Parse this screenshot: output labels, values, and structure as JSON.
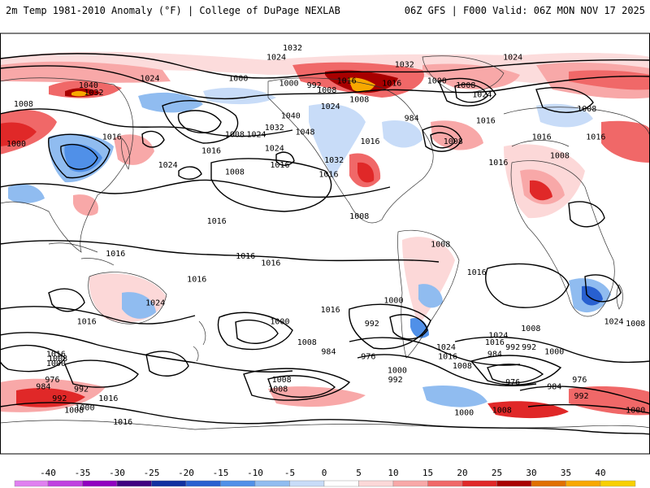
{
  "header": {
    "left_title": "2m Temp 1981-2010 Anomaly (°F) | College of DuPage NEXLAB",
    "right_title": "06Z GFS | F000 Valid: 06Z MON NOV 17 2025"
  },
  "legend": {
    "ticks": [
      "-40",
      "-35",
      "-30",
      "-25",
      "-20",
      "-15",
      "-10",
      "-5",
      "0",
      "5",
      "10",
      "15",
      "20",
      "25",
      "30",
      "35",
      "40"
    ],
    "colors": [
      "#e080f0",
      "#c040e0",
      "#9000c0",
      "#400080",
      "#1030a0",
      "#2860d0",
      "#5090e8",
      "#90bcf0",
      "#c8dcf8",
      "#ffffff",
      "#fcd8d8",
      "#f8a8a8",
      "#f06868",
      "#e02828",
      "#a80000",
      "#e07000",
      "#f8a800",
      "#f8d000"
    ]
  },
  "isobars": {
    "labels": [
      {
        "text": "1032",
        "lon": -168,
        "lat": 84
      },
      {
        "text": "1024",
        "lon": -177,
        "lat": 80
      },
      {
        "text": "1032",
        "lon": -106,
        "lat": 77
      },
      {
        "text": "1024",
        "lon": -46,
        "lat": 80
      },
      {
        "text": "1000",
        "lon": -170,
        "lat": 69
      },
      {
        "text": "992",
        "lon": -156,
        "lat": 68
      },
      {
        "text": "1008",
        "lon": -149,
        "lat": 66
      },
      {
        "text": "1016",
        "lon": -138,
        "lat": 70
      },
      {
        "text": "1016",
        "lon": -113,
        "lat": 69
      },
      {
        "text": "1000",
        "lon": -88,
        "lat": 70
      },
      {
        "text": "1008",
        "lon": -72,
        "lat": 68
      },
      {
        "text": "1008",
        "lon": -131,
        "lat": 62
      },
      {
        "text": "1024",
        "lon": -147,
        "lat": 59
      },
      {
        "text": "1040",
        "lon": -169,
        "lat": 55
      },
      {
        "text": "984",
        "lon": -102,
        "lat": 54
      },
      {
        "text": "1016",
        "lon": -61,
        "lat": 53
      },
      {
        "text": "1032",
        "lon": -178,
        "lat": 50
      },
      {
        "text": "1048",
        "lon": -161,
        "lat": 48
      },
      {
        "text": "1016",
        "lon": -125,
        "lat": 44
      },
      {
        "text": "1008",
        "lon": -79,
        "lat": 44
      },
      {
        "text": "1024",
        "lon": -178,
        "lat": 41
      },
      {
        "text": "1032",
        "lon": -145,
        "lat": 36
      },
      {
        "text": "1016",
        "lon": -175,
        "lat": 34
      },
      {
        "text": "1016",
        "lon": -148,
        "lat": 30
      },
      {
        "text": "1008",
        "lon": -131,
        "lat": 12
      },
      {
        "text": "1008",
        "lon": -86,
        "lat": 0
      },
      {
        "text": "1016",
        "lon": -66,
        "lat": -12
      },
      {
        "text": "1016",
        "lon": -147,
        "lat": -28
      },
      {
        "text": "1000",
        "lon": -112,
        "lat": -24
      },
      {
        "text": "1000",
        "lon": -175,
        "lat": -33
      },
      {
        "text": "992",
        "lon": -124,
        "lat": -34
      },
      {
        "text": "1008",
        "lon": -160,
        "lat": -42
      },
      {
        "text": "984",
        "lon": -148,
        "lat": -46
      },
      {
        "text": "976",
        "lon": -126,
        "lat": -48
      },
      {
        "text": "1000",
        "lon": -110,
        "lat": -54
      },
      {
        "text": "992",
        "lon": -111,
        "lat": -58
      },
      {
        "text": "1024",
        "lon": -54,
        "lat": -39
      },
      {
        "text": "1016",
        "lon": -56,
        "lat": -42
      },
      {
        "text": "1024",
        "lon": -83,
        "lat": -44
      },
      {
        "text": "1016",
        "lon": -82,
        "lat": -48
      },
      {
        "text": "1008",
        "lon": -74,
        "lat": -52
      },
      {
        "text": "992",
        "lon": -46,
        "lat": -44
      },
      {
        "text": "984",
        "lon": -56,
        "lat": -47
      },
      {
        "text": "1000",
        "lon": -23,
        "lat": -46
      },
      {
        "text": "976",
        "lon": -46,
        "lat": -59
      },
      {
        "text": "984",
        "lon": -23,
        "lat": -61
      },
      {
        "text": "976",
        "lon": -9,
        "lat": -58
      },
      {
        "text": "992",
        "lon": -8,
        "lat": -65
      },
      {
        "text": "1008",
        "lon": -52,
        "lat": -71
      },
      {
        "text": "1008",
        "lon": -174,
        "lat": -58
      },
      {
        "text": "1008",
        "lon": -176,
        "lat": -62
      },
      {
        "text": "1000",
        "lon": -73,
        "lat": -72
      },
      {
        "text": "1008",
        "lon": -36,
        "lat": -36
      },
      {
        "text": "992",
        "lon": -37,
        "lat": -44
      },
      {
        "text": "1016",
        "lon": 61,
        "lat": -47
      },
      {
        "text": "1008",
        "lon": 62,
        "lat": -49
      },
      {
        "text": "1000",
        "lon": 61,
        "lat": -51
      },
      {
        "text": "976",
        "lon": 59,
        "lat": -58
      },
      {
        "text": "984",
        "lon": 54,
        "lat": -61
      },
      {
        "text": "992",
        "lon": 75,
        "lat": -62
      },
      {
        "text": "992",
        "lon": 63,
        "lat": -66
      },
      {
        "text": "1016",
        "lon": 90,
        "lat": -66
      },
      {
        "text": "1008",
        "lon": 71,
        "lat": -71
      },
      {
        "text": "1000",
        "lon": 77,
        "lat": -70
      },
      {
        "text": "1016",
        "lon": 98,
        "lat": -76
      },
      {
        "text": "1000",
        "lon": 22,
        "lat": -71
      },
      {
        "text": "1024",
        "lon": 10,
        "lat": -33
      },
      {
        "text": "1008",
        "lon": 22,
        "lat": -34
      },
      {
        "text": "1016",
        "lon": 78,
        "lat": -33
      },
      {
        "text": "1024",
        "lon": 116,
        "lat": -25
      },
      {
        "text": "1016",
        "lon": 139,
        "lat": -15
      },
      {
        "text": "1016",
        "lon": 94,
        "lat": -4
      },
      {
        "text": "1016",
        "lon": 166,
        "lat": -5
      },
      {
        "text": "1016",
        "lon": 180,
        "lat": -8
      },
      {
        "text": "1016",
        "lon": 150,
        "lat": 10
      },
      {
        "text": "1008",
        "lon": 160,
        "lat": 31
      },
      {
        "text": "1016",
        "lon": 147,
        "lat": 40
      },
      {
        "text": "1024",
        "lon": 123,
        "lat": 34
      },
      {
        "text": "1016",
        "lon": 92,
        "lat": 46
      },
      {
        "text": "1032",
        "lon": 82,
        "lat": 65
      },
      {
        "text": "1040",
        "lon": 79,
        "lat": 68
      },
      {
        "text": "1008",
        "lon": 43,
        "lat": 60
      },
      {
        "text": "1000",
        "lon": 39,
        "lat": 43
      },
      {
        "text": "1016",
        "lon": 0,
        "lat": 46
      },
      {
        "text": "1008",
        "lon": -20,
        "lat": 38
      },
      {
        "text": "1016",
        "lon": -30,
        "lat": 46
      },
      {
        "text": "1024",
        "lon": -63,
        "lat": 64
      },
      {
        "text": "1016",
        "lon": -54,
        "lat": 35
      },
      {
        "text": "1008",
        "lon": -5,
        "lat": 58
      },
      {
        "text": "1024",
        "lon": 113,
        "lat": 71
      },
      {
        "text": "1000",
        "lon": 162,
        "lat": 71
      },
      {
        "text": "1008",
        "lon": 160,
        "lat": 47
      },
      {
        "text": "1024",
        "lon": 172,
        "lat": 47
      }
    ]
  }
}
